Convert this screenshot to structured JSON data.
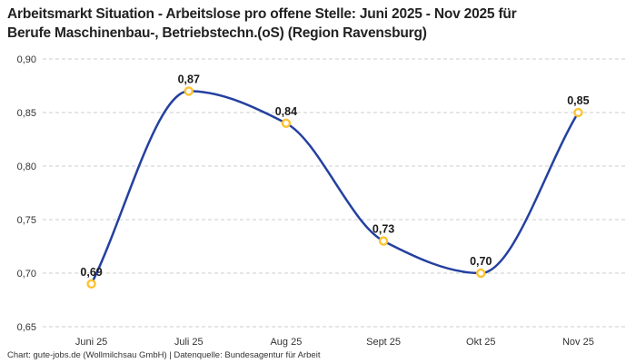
{
  "colors": {
    "background": "#ffffff",
    "line": "#2440a0",
    "marker_stroke": "#fdc32f",
    "marker_fill": "#ffffff",
    "gridline": "#cccccc",
    "title_text": "#222222",
    "axis_text": "#333333",
    "value_label_text": "#1a1a1a",
    "footer_text": "#333333"
  },
  "header": {
    "title_lines": [
      "Arbeitsmarkt Situation - Arbeitslose pro offene Stelle: Juni 2025 - Nov 2025 für",
      "Berufe Maschinenbau-, Betriebstechn.(oS) (Region Ravensburg)"
    ]
  },
  "chart_data": {
    "type": "line",
    "title": "Arbeitsmarkt Situation - Arbeitslose pro offene Stelle: Juni 2025 - Nov 2025 für Berufe Maschinenbau-, Betriebstechn.(oS) (Region Ravensburg)",
    "categories": [
      "Juni 25",
      "Juli 25",
      "Aug 25",
      "Sept 25",
      "Okt 25",
      "Nov 25"
    ],
    "values": [
      0.69,
      0.87,
      0.84,
      0.73,
      0.7,
      0.85
    ],
    "value_labels": [
      "0,69",
      "0,87",
      "0,84",
      "0,73",
      "0,70",
      "0,85"
    ],
    "xlabel": "",
    "ylabel": "",
    "ylim": [
      0.65,
      0.9
    ],
    "y_ticks": [
      {
        "value": 0.9,
        "label": "0,90"
      },
      {
        "value": 0.85,
        "label": "0,85"
      },
      {
        "value": 0.8,
        "label": "0,80"
      },
      {
        "value": 0.75,
        "label": "0,75"
      },
      {
        "value": 0.7,
        "label": "0,70"
      },
      {
        "value": 0.65,
        "label": "0,65"
      }
    ],
    "grid": "horizontal-dashed",
    "legend": "none",
    "curve": "monotone"
  },
  "footer": {
    "credit": "Chart: gute-jobs.de (Wollmilchsau GmbH) | Datenquelle: Bundesagentur für Arbeit"
  }
}
